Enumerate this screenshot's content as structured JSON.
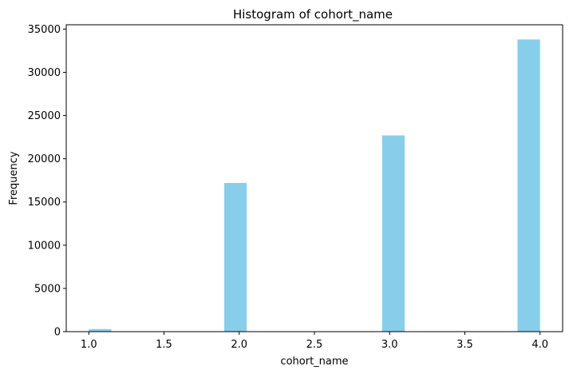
{
  "chart_data": {
    "type": "bar",
    "title": "Histogram of cohort_name",
    "xlabel": "cohort_name",
    "ylabel": "Frequency",
    "xlim": [
      0.85,
      4.15
    ],
    "ylim": [
      0,
      35500
    ],
    "x_ticks": [
      "1.0",
      "1.5",
      "2.0",
      "2.5",
      "3.0",
      "3.5",
      "4.0"
    ],
    "y_ticks": [
      "0",
      "5000",
      "10000",
      "15000",
      "20000",
      "25000",
      "30000",
      "35000"
    ],
    "bin_width": 0.15,
    "bars": [
      {
        "x_start": 1.0,
        "value": 300
      },
      {
        "x_start": 1.9,
        "value": 17200
      },
      {
        "x_start": 2.95,
        "value": 22700
      },
      {
        "x_start": 3.85,
        "value": 33800
      }
    ],
    "bar_color": "#87CEEB",
    "grid": false
  }
}
